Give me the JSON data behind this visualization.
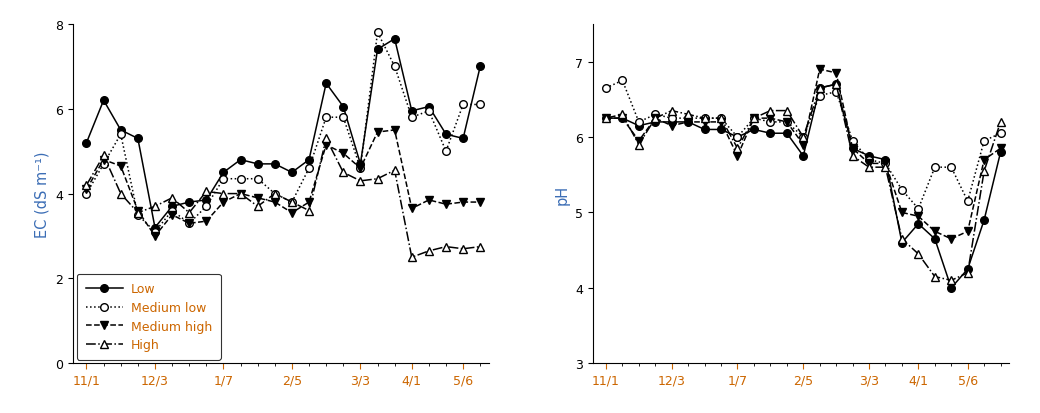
{
  "ec_low": [
    5.2,
    6.2,
    5.5,
    5.3,
    3.2,
    3.7,
    3.8,
    3.85,
    4.5,
    4.8,
    4.7,
    4.7,
    4.5,
    4.8,
    6.6,
    6.05,
    4.7,
    7.4,
    7.65,
    5.95,
    6.05,
    5.4,
    5.3,
    7.0
  ],
  "ec_med_low": [
    4.0,
    4.7,
    5.4,
    3.5,
    3.1,
    3.6,
    3.3,
    3.7,
    4.35,
    4.35,
    4.35,
    4.0,
    3.8,
    4.6,
    5.8,
    5.8,
    4.6,
    7.8,
    7.0,
    5.8,
    5.95,
    5.0,
    6.1,
    6.1
  ],
  "ec_med_high": [
    4.1,
    4.8,
    4.65,
    3.6,
    3.0,
    3.5,
    3.3,
    3.35,
    3.8,
    4.0,
    3.9,
    3.8,
    3.55,
    3.8,
    5.15,
    4.95,
    4.6,
    5.45,
    5.5,
    3.65,
    3.85,
    3.75,
    3.8,
    3.8
  ],
  "ec_high": [
    4.2,
    4.9,
    4.0,
    3.55,
    3.7,
    3.9,
    3.55,
    4.05,
    4.0,
    4.0,
    3.7,
    4.0,
    3.8,
    3.6,
    5.3,
    4.5,
    4.3,
    4.35,
    4.55,
    2.5,
    2.65,
    2.75,
    2.7,
    2.75
  ],
  "ph_low": [
    6.25,
    6.25,
    6.15,
    6.2,
    6.2,
    6.2,
    6.1,
    6.1,
    6.0,
    6.1,
    6.05,
    6.05,
    5.75,
    6.65,
    6.7,
    5.85,
    5.75,
    5.7,
    4.6,
    4.85,
    4.65,
    4.0,
    4.25,
    4.9,
    5.8
  ],
  "ph_med_low": [
    6.65,
    6.75,
    6.2,
    6.3,
    6.25,
    6.25,
    6.25,
    6.25,
    6.0,
    6.25,
    6.2,
    6.2,
    6.0,
    6.55,
    6.6,
    5.95,
    5.7,
    5.65,
    5.3,
    5.05,
    5.6,
    5.6,
    5.15,
    5.95,
    6.05
  ],
  "ph_med_high": [
    6.25,
    6.25,
    5.95,
    6.25,
    6.15,
    6.2,
    6.2,
    6.2,
    5.75,
    6.25,
    6.25,
    6.2,
    5.9,
    6.9,
    6.85,
    5.85,
    5.65,
    5.65,
    5.0,
    4.95,
    4.75,
    4.65,
    4.75,
    5.7,
    5.85
  ],
  "ph_high": [
    6.25,
    6.3,
    5.9,
    6.25,
    6.35,
    6.3,
    6.25,
    6.25,
    5.85,
    6.25,
    6.35,
    6.35,
    6.0,
    6.65,
    6.7,
    5.75,
    5.6,
    5.6,
    4.65,
    4.45,
    4.15,
    4.1,
    4.2,
    5.55,
    6.2
  ],
  "x_tick_labels": [
    "11/1",
    "12/3",
    "1/7",
    "2/5",
    "3/3",
    "4/1",
    "5/6"
  ],
  "x_tick_positions": [
    0,
    4,
    8,
    12,
    16,
    19,
    22
  ],
  "ec_ylabel": "EC (dS m⁻¹)",
  "ph_ylabel": "pH",
  "ec_ylim": [
    0,
    8
  ],
  "ph_ylim": [
    3,
    7.5
  ],
  "ec_yticks": [
    0,
    2,
    4,
    6,
    8
  ],
  "ph_yticks": [
    3,
    4,
    5,
    6,
    7
  ],
  "legend_labels": [
    "Low",
    "Medium low",
    "Medium high",
    "High"
  ],
  "ylabel_color": "#3b6db5",
  "tick_label_color": "#cc6600",
  "legend_text_color": "#cc6600",
  "bg_color": "#ffffff"
}
